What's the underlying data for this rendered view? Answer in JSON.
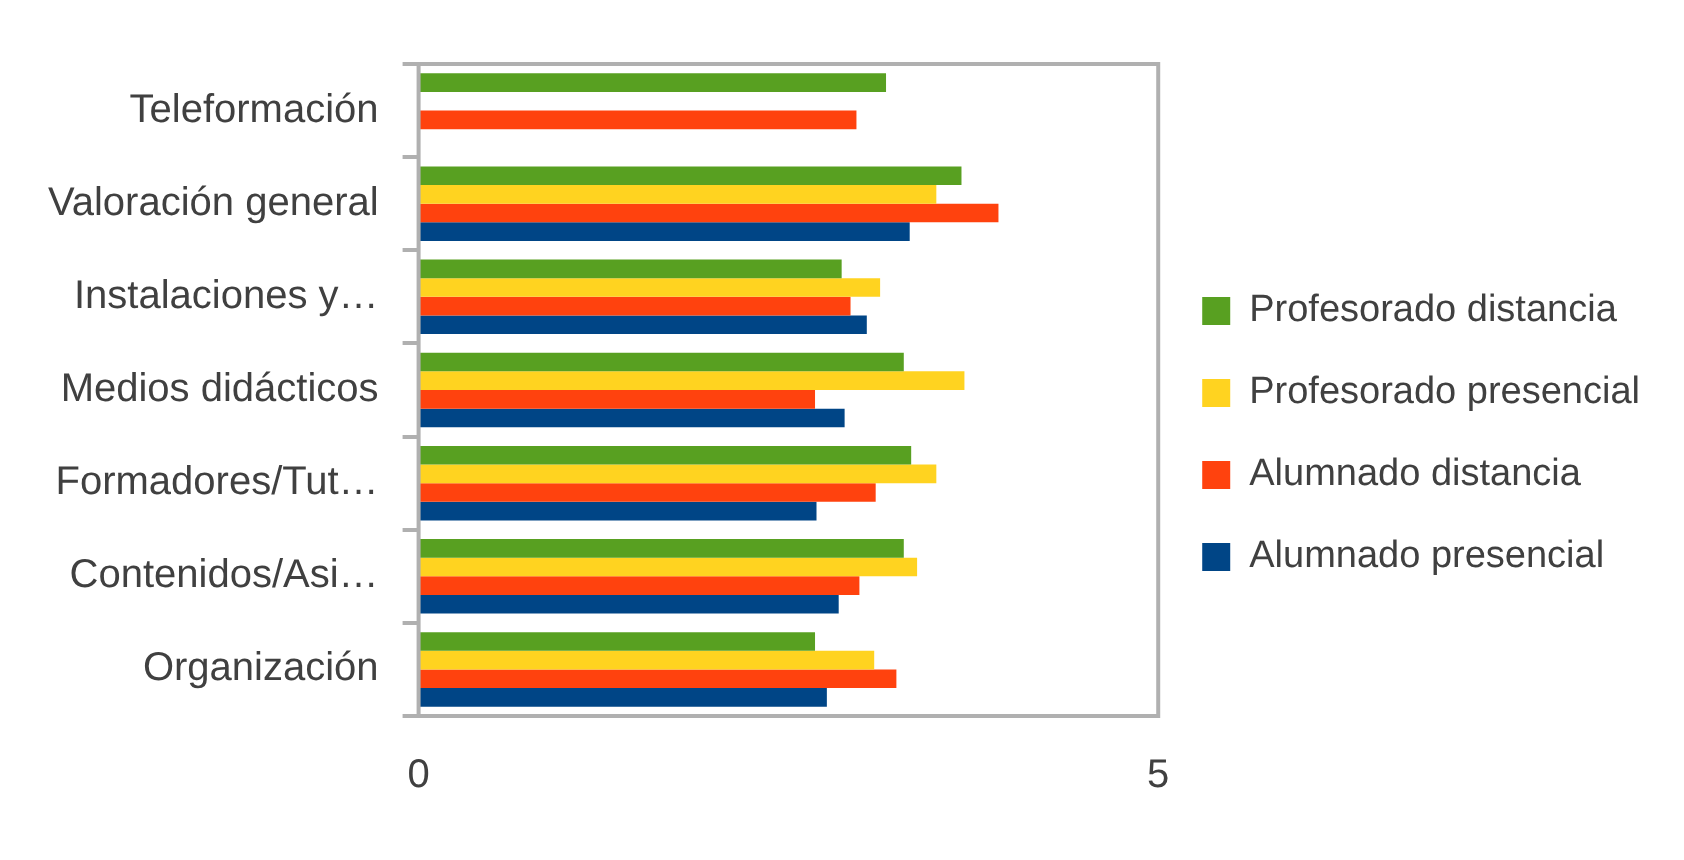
{
  "chart_data": {
    "type": "bar",
    "orientation": "horizontal",
    "categories": [
      "Teleformación",
      "Valoración general",
      "Instalaciones y…",
      "Medios didácticos",
      "Formadores/Tut…",
      "Contenidos/Asi…",
      "Organización"
    ],
    "series": [
      {
        "name": "Profesorado distancia",
        "color": "#58a021",
        "values": [
          3.16,
          3.67,
          2.86,
          3.28,
          3.33,
          3.28,
          2.68
        ]
      },
      {
        "name": "Profesorado presencial",
        "color": "#ffd320",
        "values": [
          null,
          3.5,
          3.12,
          3.69,
          3.5,
          3.37,
          3.08
        ]
      },
      {
        "name": "Alumnado distancia",
        "color": "#ff420e",
        "values": [
          2.96,
          3.92,
          2.92,
          2.68,
          3.09,
          2.98,
          3.23
        ]
      },
      {
        "name": "Alumnado presencial",
        "color": "#004586",
        "values": [
          null,
          3.32,
          3.03,
          2.88,
          2.69,
          2.84,
          2.76
        ]
      }
    ],
    "xlim": [
      0,
      5
    ],
    "xticks": [
      0,
      5
    ],
    "legend": "right"
  }
}
